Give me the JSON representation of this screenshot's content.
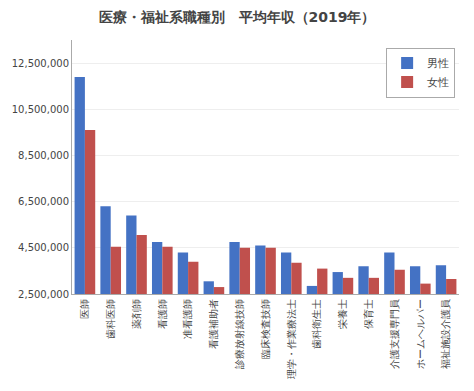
{
  "chart_data": {
    "type": "bar",
    "title": "医療・福祉系職種別　平均年収（2019年）",
    "categories": [
      "医師",
      "歯科医師",
      "薬剤師",
      "看護師",
      "准看護師",
      "看護補助者",
      "診療放射線技師",
      "臨床検査技師",
      "理学・作業療法士",
      "歯科衛生士",
      "栄養士",
      "保育士",
      "介護支援専門員",
      "ホームヘルパー",
      "福祉施設介護員"
    ],
    "series": [
      {
        "name": "男性",
        "color": "#4472c4",
        "values": [
          11900000,
          6300000,
          5900000,
          4750000,
          4300000,
          3050000,
          4750000,
          4600000,
          4300000,
          2850000,
          3450000,
          3700000,
          4300000,
          3700000,
          3750000
        ]
      },
      {
        "name": "女性",
        "color": "#c0504d",
        "values": [
          9600000,
          4550000,
          5050000,
          4550000,
          3900000,
          2800000,
          4500000,
          4500000,
          3850000,
          3600000,
          3200000,
          3200000,
          3550000,
          2950000,
          3150000
        ]
      }
    ],
    "ylim": [
      2500000,
      13500000
    ],
    "yticks": [
      {
        "value": 2500000,
        "label": "2,500,000"
      },
      {
        "value": 4500000,
        "label": "4,500,000"
      },
      {
        "value": 6500000,
        "label": "6,500,000"
      },
      {
        "value": 8500000,
        "label": "8,500,000"
      },
      {
        "value": 10500000,
        "label": "10,500,000"
      },
      {
        "value": 12500000,
        "label": "12,500,000"
      }
    ],
    "grid": true,
    "legend": "upper right"
  }
}
